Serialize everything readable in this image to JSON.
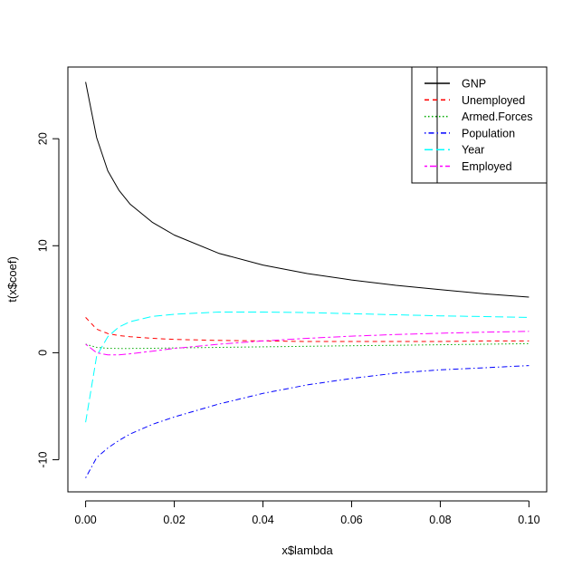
{
  "chart_data": {
    "type": "line",
    "title": "",
    "xlabel": "x$lambda",
    "ylabel": "t(x$coef)",
    "xlim": [
      -0.004,
      0.104
    ],
    "ylim": [
      -13,
      26.7
    ],
    "xticks": [
      0.0,
      0.02,
      0.04,
      0.06,
      0.08,
      0.1
    ],
    "xtick_labels": [
      "0.00",
      "0.02",
      "0.04",
      "0.06",
      "0.08",
      "0.10"
    ],
    "yticks": [
      -10,
      0,
      10,
      20
    ],
    "ytick_labels": [
      "-10",
      "0",
      "10",
      "20"
    ],
    "grid": false,
    "legend_position": "top-right",
    "x": [
      0,
      0.0025,
      0.005,
      0.0075,
      0.01,
      0.015,
      0.02,
      0.03,
      0.04,
      0.05,
      0.06,
      0.07,
      0.08,
      0.09,
      0.1
    ],
    "series": [
      {
        "name": "GNP",
        "color": "#000000",
        "dash": "solid",
        "values": [
          25.3,
          20.1,
          17.0,
          15.2,
          13.9,
          12.2,
          11.0,
          9.3,
          8.2,
          7.4,
          6.8,
          6.3,
          5.9,
          5.5,
          5.2
        ]
      },
      {
        "name": "Unemployed",
        "color": "#ff0000",
        "dash": "dashed",
        "values": [
          3.3,
          2.2,
          1.8,
          1.6,
          1.5,
          1.35,
          1.25,
          1.15,
          1.1,
          1.05,
          1.05,
          1.05,
          1.05,
          1.1,
          1.1
        ]
      },
      {
        "name": "Armed.Forces",
        "color": "#00aa00",
        "dash": "dotted",
        "values": [
          0.8,
          0.5,
          0.42,
          0.4,
          0.4,
          0.42,
          0.45,
          0.5,
          0.55,
          0.6,
          0.65,
          0.7,
          0.75,
          0.8,
          0.85
        ]
      },
      {
        "name": "Population",
        "color": "#0000ff",
        "dash": "dotdash",
        "values": [
          -11.7,
          -9.8,
          -8.9,
          -8.2,
          -7.6,
          -6.7,
          -6.0,
          -4.8,
          -3.8,
          -3.0,
          -2.4,
          -1.9,
          -1.6,
          -1.4,
          -1.2
        ]
      },
      {
        "name": "Year",
        "color": "#00ffff",
        "dash": "longdash",
        "values": [
          -6.5,
          -0.3,
          1.5,
          2.4,
          2.9,
          3.4,
          3.6,
          3.8,
          3.8,
          3.75,
          3.65,
          3.55,
          3.45,
          3.38,
          3.3
        ]
      },
      {
        "name": "Employed",
        "color": "#ff00ff",
        "dash": "twodash",
        "values": [
          0.8,
          0.0,
          -0.2,
          -0.2,
          -0.1,
          0.15,
          0.4,
          0.8,
          1.1,
          1.35,
          1.55,
          1.7,
          1.82,
          1.92,
          2.0
        ]
      }
    ]
  }
}
